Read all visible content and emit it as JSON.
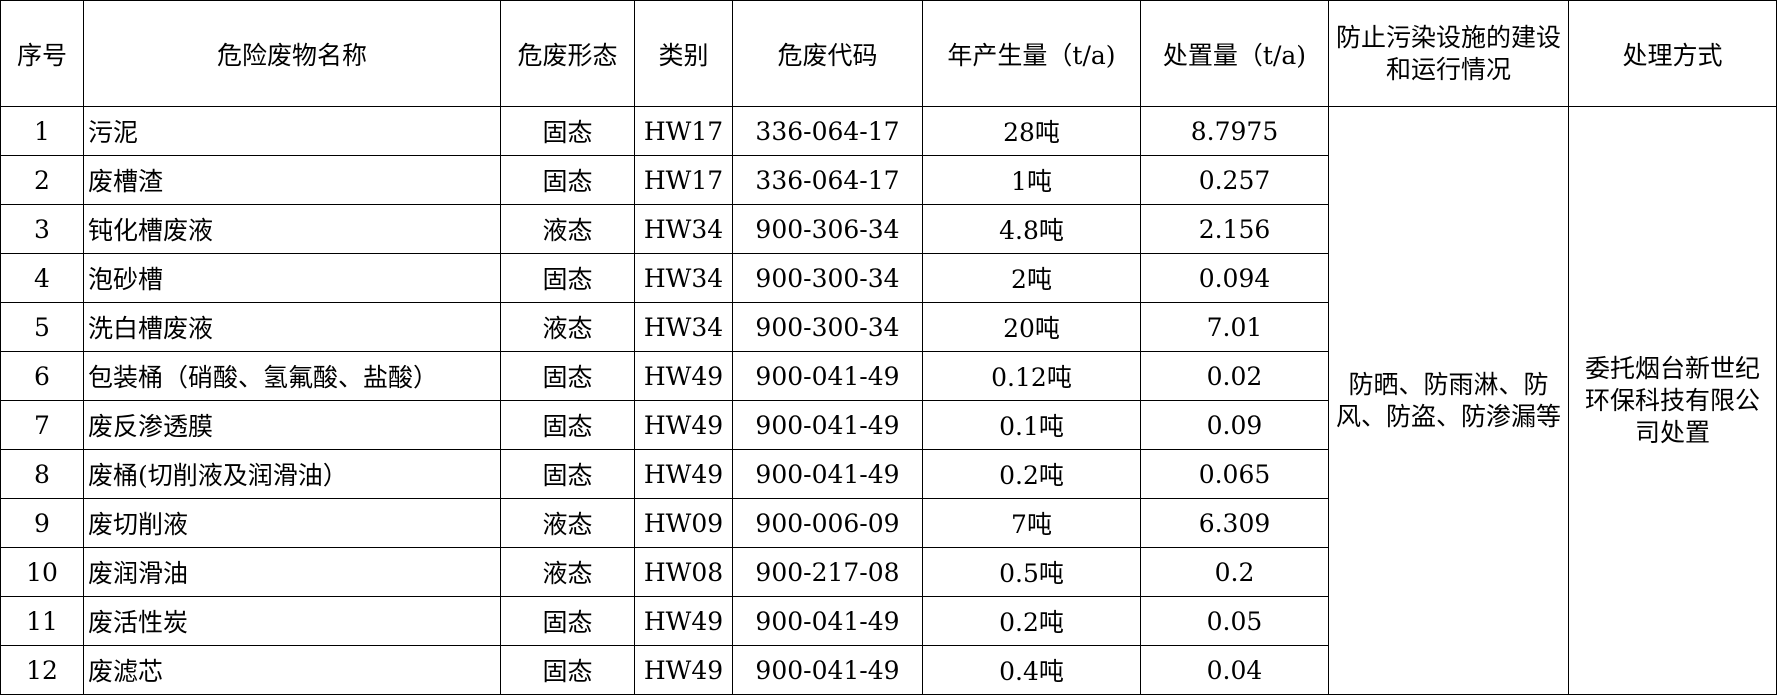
{
  "headers": [
    "序号",
    "危险废物名称",
    "危废形态",
    "类别",
    "危废代码",
    "年产生量（t/a)",
    "处置量（t/a)",
    "防止污染设施的建设和运行情况",
    "处理方式"
  ],
  "rows": [
    [
      "1",
      "污泥",
      "固态",
      "HW17",
      "336-064-17",
      "28吨",
      "8.7975"
    ],
    [
      "2",
      "废槽渣",
      "固态",
      "HW17",
      "336-064-17",
      "1吨",
      "0.257"
    ],
    [
      "3",
      "钝化槽废液",
      "液态",
      "HW34",
      "900-306-34",
      "4.8吨",
      "2.156"
    ],
    [
      "4",
      "泡砂槽",
      "固态",
      "HW34",
      "900-300-34",
      "2吨",
      "0.094"
    ],
    [
      "5",
      "洗白槽废液",
      "液态",
      "HW34",
      "900-300-34",
      "20吨",
      "7.01"
    ],
    [
      "6",
      "包装桶（硝酸、氢氟酸、盐酸）",
      "固态",
      "HW49",
      "900-041-49",
      "0.12吨",
      "0.02"
    ],
    [
      "7",
      "废反渗透膜",
      "固态",
      "HW49",
      "900-041-49",
      "0.1吨",
      "0.09"
    ],
    [
      "8",
      "废桶(切削液及润滑油）",
      "固态",
      "HW49",
      "900-041-49",
      "0.2吨",
      "0.065"
    ],
    [
      "9",
      "废切削液",
      "液态",
      "HW09",
      "900-006-09",
      "7吨",
      "6.309"
    ],
    [
      "10",
      "废润滑油",
      "液态",
      "HW08",
      "900-217-08",
      "0.5吨",
      "0.2"
    ],
    [
      "11",
      "废活性炭",
      "固态",
      "HW49",
      "900-041-49",
      "0.2吨",
      "0.05"
    ],
    [
      "12",
      "废滤芯",
      "固态",
      "HW49",
      "900-041-49",
      "0.4吨",
      "0.04"
    ]
  ],
  "merged": {
    "facilities": "防晒、防雨淋、防风、防盗、防渗漏等",
    "treatment": "委托烟台新世纪环保科技有限公司处置"
  }
}
